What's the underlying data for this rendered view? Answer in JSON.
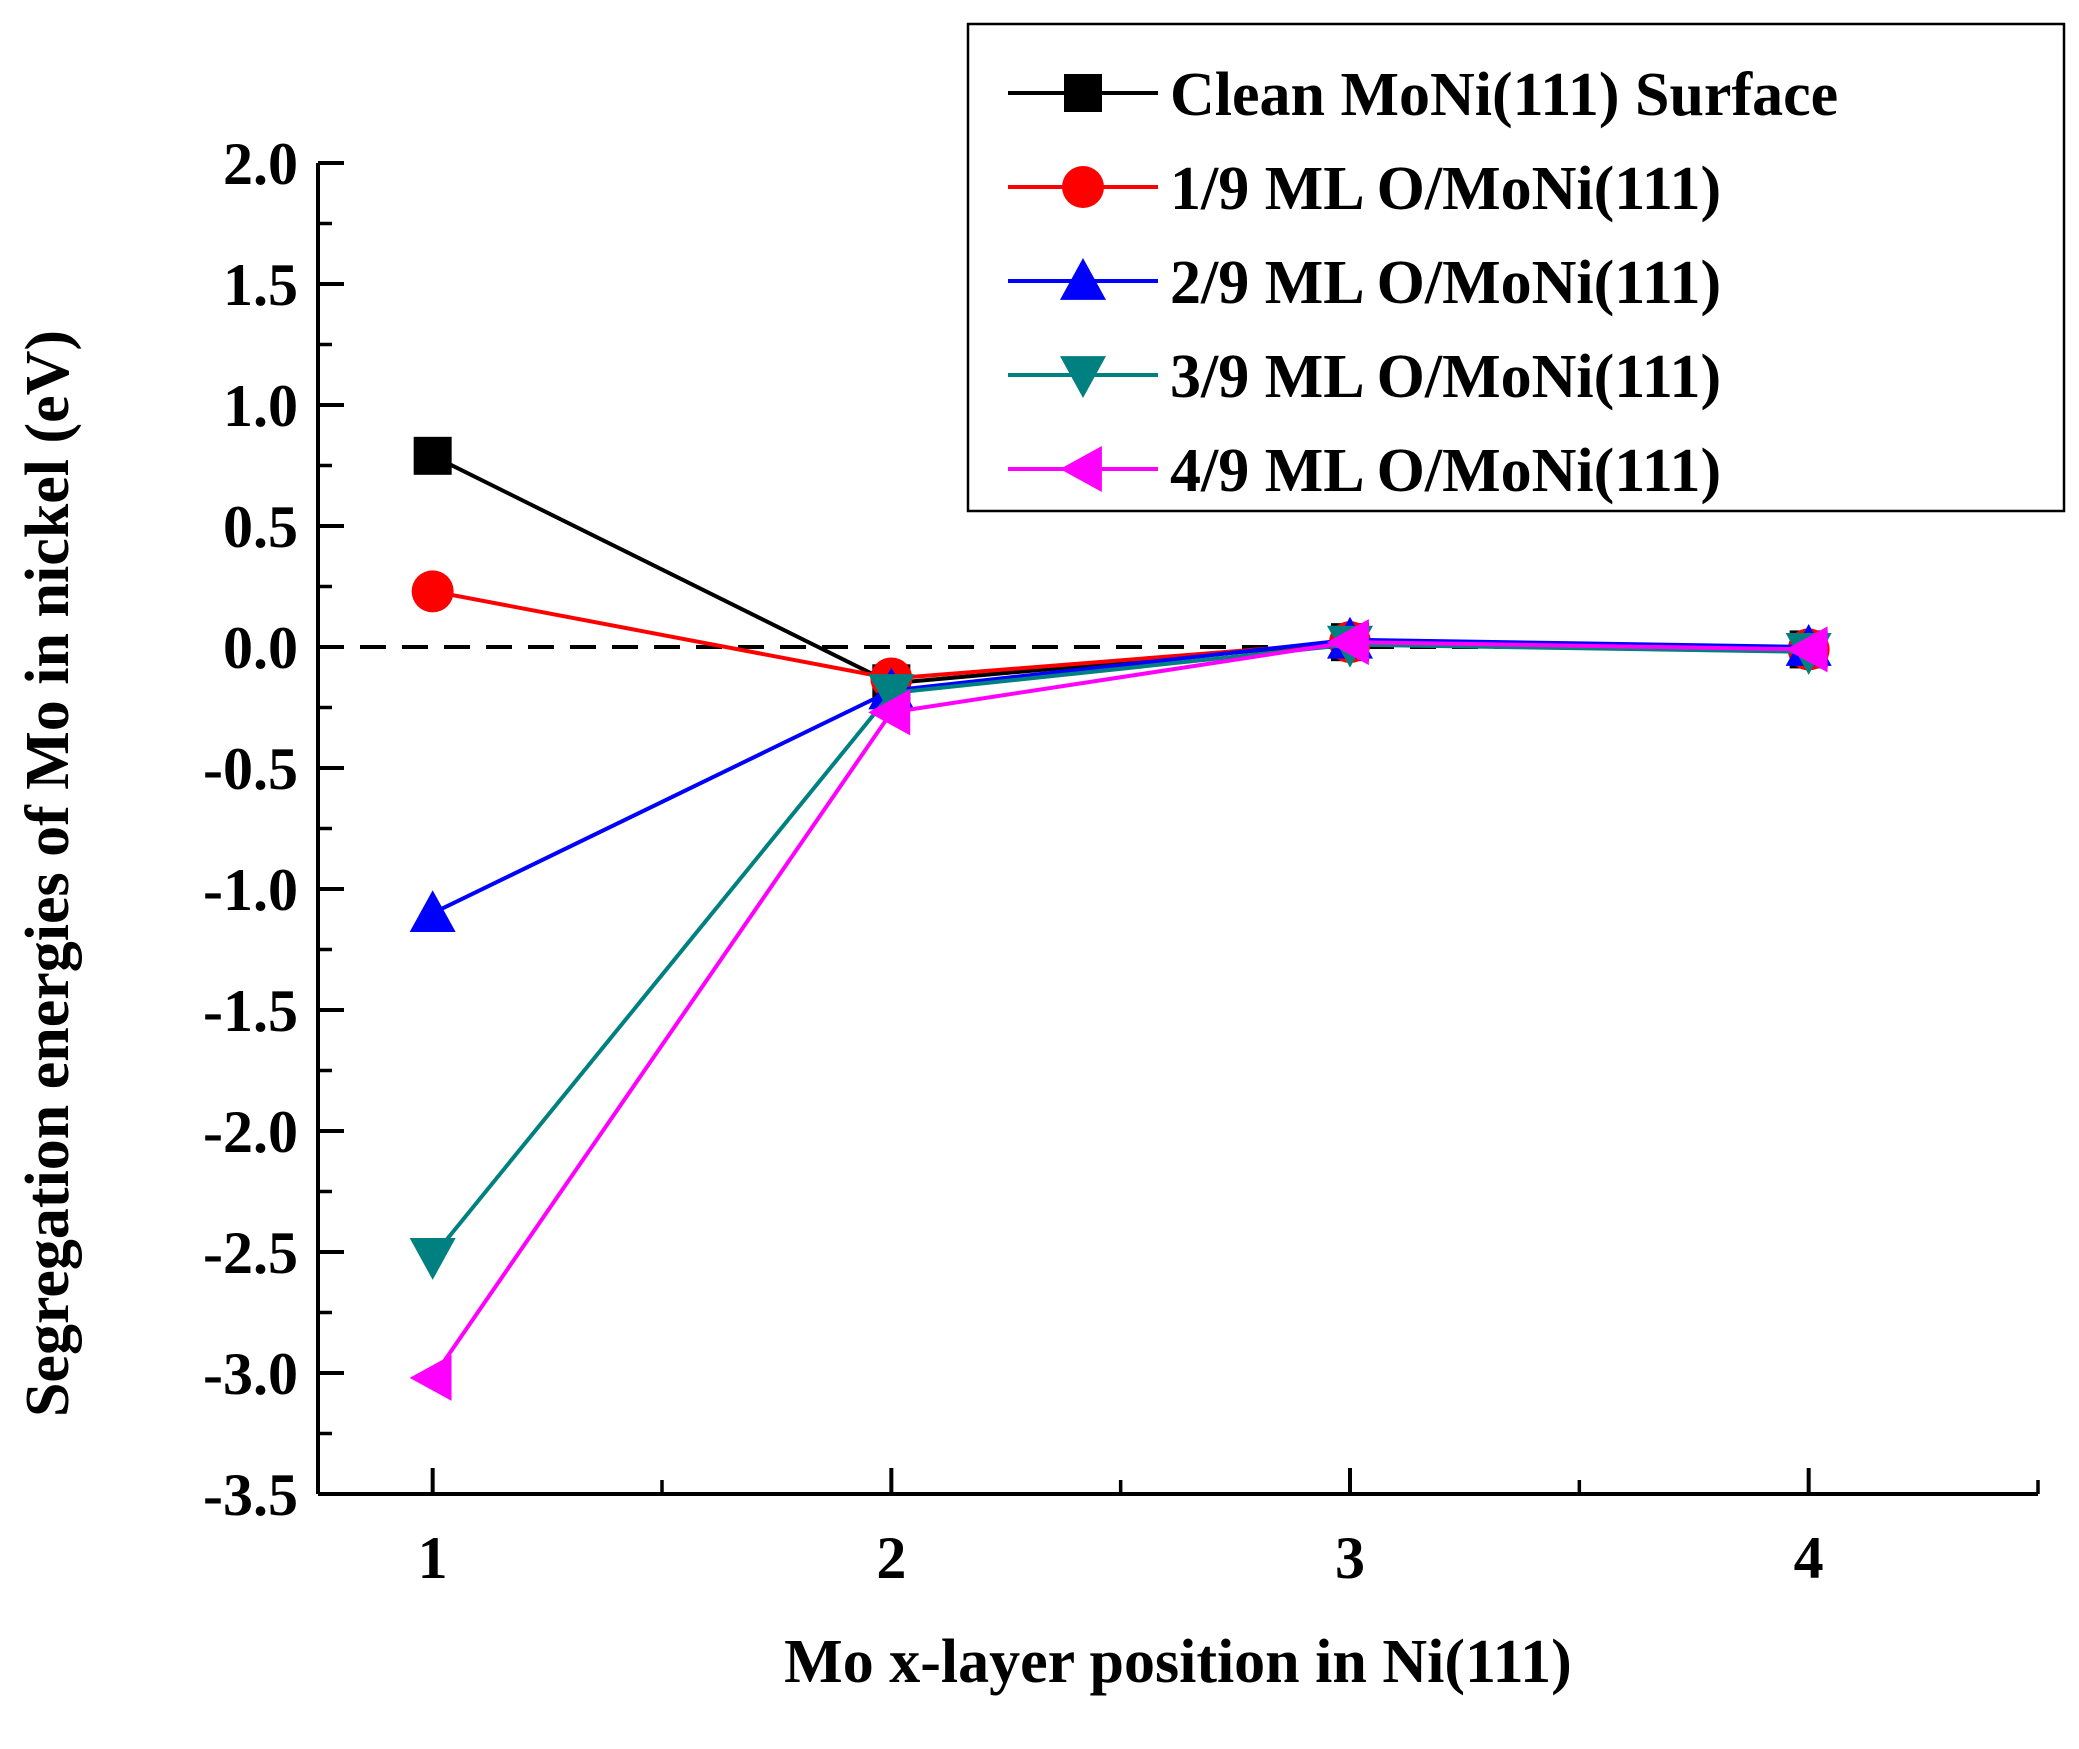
{
  "chart_data": {
    "type": "line",
    "title": "",
    "xlabel": "Mo x-layer position in Ni(111)",
    "ylabel": "Segregation energies of Mo in nickel (eV)",
    "x": [
      1,
      2,
      3,
      4
    ],
    "xlim": [
      0.75,
      4.5
    ],
    "ylim": [
      -3.5,
      2.0
    ],
    "x_ticks": [
      1,
      2,
      3,
      4
    ],
    "x_tick_labels": [
      "1",
      "2",
      "3",
      "4"
    ],
    "y_ticks": [
      2.0,
      1.5,
      1.0,
      0.5,
      0.0,
      -0.5,
      -1.0,
      -1.5,
      -2.0,
      -2.5,
      -3.0,
      -3.5
    ],
    "y_tick_labels": [
      "2.0",
      "1.5",
      "1.0",
      "0.5",
      "0.0",
      "-0.5",
      "-1.0",
      "-1.5",
      "-2.0",
      "-2.5",
      "-3.0",
      "-3.5"
    ],
    "reference_line": {
      "y": 0.0,
      "style": "dashed",
      "color": "#000000"
    },
    "grid": false,
    "legend_position": "top-right",
    "series": [
      {
        "name": "Clean MoNi(111) Surface",
        "color": "#000000",
        "marker": "square",
        "values": [
          0.79,
          -0.15,
          0.02,
          -0.01
        ]
      },
      {
        "name": "1/9 ML O/MoNi(111)",
        "color": "#ff0000",
        "marker": "circle",
        "values": [
          0.23,
          -0.13,
          0.02,
          -0.01
        ]
      },
      {
        "name": "2/9 ML O/MoNi(111)",
        "color": "#0000ff",
        "marker": "triangle-up",
        "values": [
          -1.1,
          -0.18,
          0.03,
          0.0
        ]
      },
      {
        "name": "3/9 ML O/MoNi(111)",
        "color": "#008080",
        "marker": "triangle-down",
        "values": [
          -2.52,
          -0.19,
          0.01,
          -0.02
        ]
      },
      {
        "name": "4/9 ML O/MoNi(111)",
        "color": "#ff00ff",
        "marker": "triangle-left",
        "values": [
          -3.02,
          -0.27,
          0.02,
          -0.01
        ]
      }
    ]
  }
}
